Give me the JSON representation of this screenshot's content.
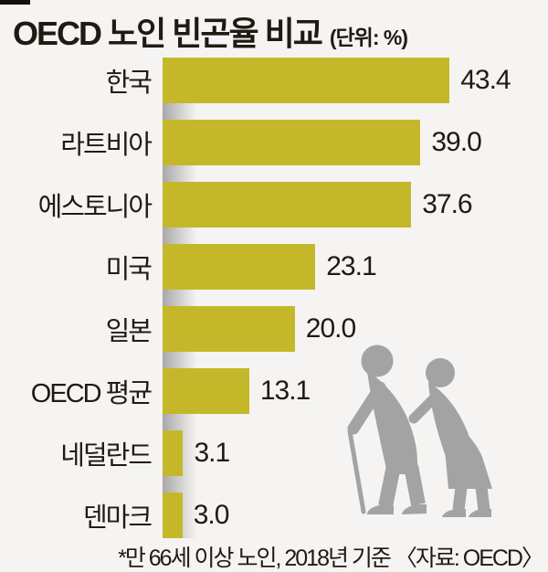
{
  "title": {
    "text": "OECD 노인 빈곤율 비교",
    "unit": "(단위: %)"
  },
  "footnote": "*만 66세 이상 노인, 2018년 기준 〈자료: OECD〉",
  "colors": {
    "bar": "#c4b82a",
    "background": "#f5f4f2",
    "text": "#211a13",
    "silhouette": "#a3a3a3",
    "axis_gradient": "#a8a8a8",
    "accent_mark": "#14100d"
  },
  "illustration": {
    "name": "elderly-couple-silhouette"
  },
  "chart_data": {
    "type": "bar",
    "orientation": "horizontal",
    "title": "OECD 노인 빈곤율 비교",
    "unit": "%",
    "categories": [
      "한국",
      "라트비아",
      "에스토니아",
      "미국",
      "일본",
      "OECD 평균",
      "네덜란드",
      "덴마크"
    ],
    "values": [
      43.4,
      39.0,
      37.6,
      23.1,
      20.0,
      13.1,
      3.1,
      3.0
    ],
    "value_labels": [
      "43.4",
      "39.0",
      "37.6",
      "23.1",
      "20.0",
      "13.1",
      "3.1",
      "3.0"
    ],
    "xlim": [
      0,
      45
    ],
    "grid": false,
    "legend": false,
    "note": "*만 66세 이상 노인, 2018년 기준",
    "source": "OECD"
  }
}
